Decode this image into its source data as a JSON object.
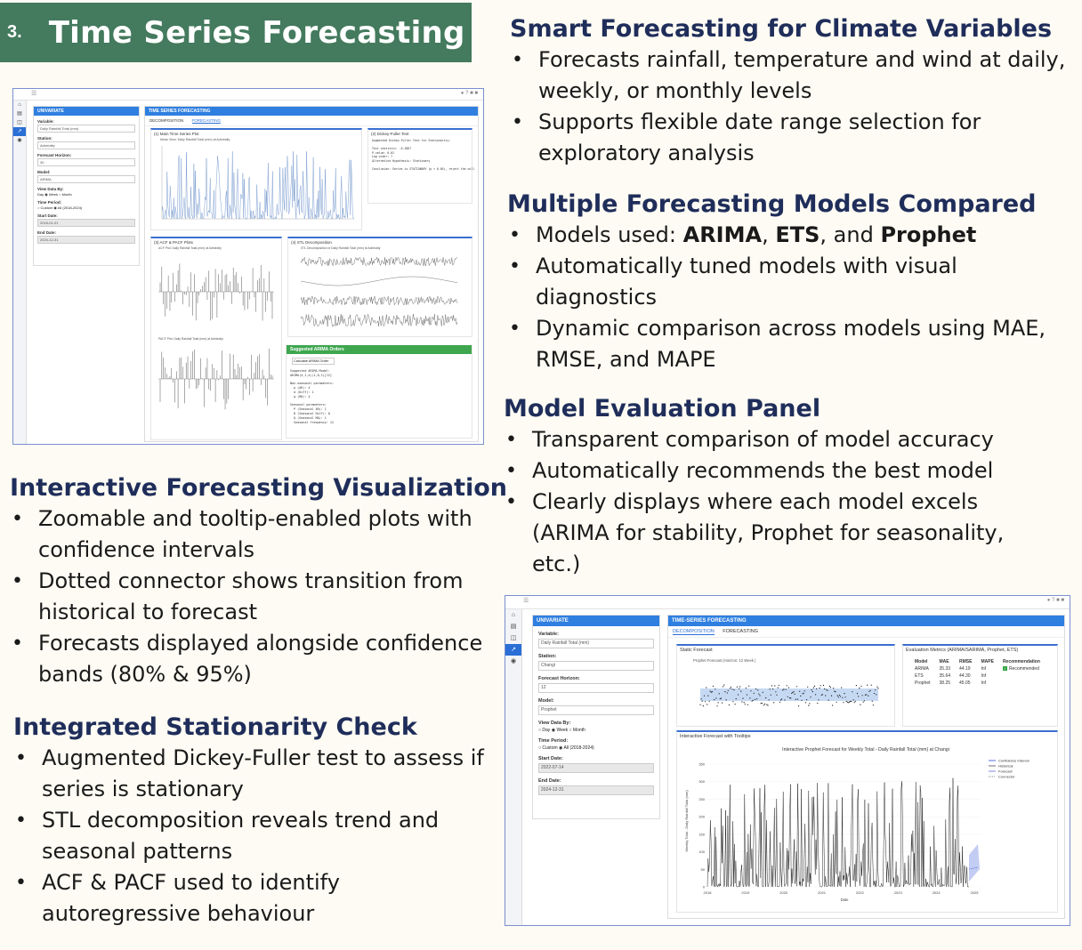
{
  "banner": {
    "number": "3.",
    "title": "Time Series Forecasting"
  },
  "sections": {
    "smart": {
      "heading": "Smart Forecasting for Climate Variables",
      "bullets": [
        "Forecasts rainfall, temperature and wind at daily, weekly, or monthly levels",
        "Supports flexible date range selection for exploratory analysis"
      ]
    },
    "models": {
      "heading": "Multiple Forecasting Models Compared",
      "b1_prefix": "Models used: ",
      "b1_arima": "ARIMA",
      "b1_sep": ", ",
      "b1_ets": "ETS",
      "b1_and": ", and ",
      "b1_prophet": "Prophet",
      "bullets": [
        "Automatically tuned models with visual diagnostics",
        "Dynamic comparison across models using MAE, RMSE, and MAPE"
      ]
    },
    "evaluation": {
      "heading": "Model Evaluation Panel",
      "bullets": [
        "Transparent comparison of model accuracy",
        "Automatically recommends the best model",
        "Clearly displays where each model excels (ARIMA for stability, Prophet for seasonality, etc.)"
      ]
    },
    "interactive": {
      "heading": "Interactive Forecasting Visualization",
      "bullets": [
        "Zoomable and tooltip-enabled plots with confidence intervals",
        "Dotted connector shows transition from historical to forecast",
        "Forecasts displayed alongside confidence bands (80% & 95%)"
      ]
    },
    "stationarity": {
      "heading": "Integrated Stationarity Check",
      "bullets": [
        "Augmented Dickey-Fuller test to assess if series is stationary",
        "STL decomposition reveals trend and seasonal patterns",
        "ACF & PACF used to identify autoregressive behaviour"
      ]
    }
  },
  "screenshot1": {
    "left_panel_title": "UNIVARIATE",
    "right_panel_title": "TIME SERIES FORECASTING",
    "tabs": [
      "DECOMPOSITION",
      "FORECASTING"
    ],
    "fields": [
      {
        "label": "Variable:",
        "value": "Daily Rainfall Total (mm)"
      },
      {
        "label": "Station:",
        "value": "Admiralty"
      },
      {
        "label": "Forecast Horizon:",
        "value": "30"
      },
      {
        "label": "Model:",
        "value": "ARIMA"
      }
    ],
    "view_label": "View Data By:",
    "view_options": "Day ◉ Week ○ Month",
    "period_label": "Time Period:",
    "period_options": "○ Custom ◉ All (2018-2024)",
    "start_label": "Start Date:",
    "start_value": "2018-01-01",
    "end_label": "End Date:",
    "end_value": "2024-12-31",
    "plot1_title": "(1) Main Time Series Plot",
    "plot1_sub": "Mean View: Daily Rainfall Total (mm) at Admiralty",
    "adf_title": "(2) Dickey-Fuller Test",
    "adf_text": "Augmented Dickey-Fuller Test for Stationarity:\n\nTest statistic: -6.2867\nP-value: 0.01\nLag order: 7\nAlternative Hypothesis: Stationary\n\nConclusion: Series is STATIONARY (p < 0.05), reject the null",
    "acf_title": "(3) ACF & PACF Plots",
    "acf_sub": "ACF Plot: Daily Rainfall Total (mm) at Admiralty",
    "pacf_sub": "PACF Plot: Daily Rainfall Total (mm) at Admiralty",
    "stl_title": "(4) STL Decomposition",
    "stl_sub": "STL Decomposition of Daily Rainfall Total (mm) at Admiralty",
    "arima_title": "Suggested ARIMA Orders",
    "arima_button": "Calculate ARIMA Order",
    "arima_text": "Suggested ARIMA Model:\nARIMA(4,1,4)(1,0,1)[12]\n\nNon-seasonal parameters:\n  p (AR): 4\n  d (Diff): 1\n  q (MA): 4\n\nSeasonal parameters:\n  P (Seasonal AR): 1\n  D (Seasonal Diff): 0\n  Q (Seasonal MA): 1\n  Seasonal frequency: 12"
  },
  "screenshot2": {
    "left_panel_title": "UNIVARIATE",
    "right_panel_title": "TIME-SERIES FORECASTING",
    "tabs": [
      "DECOMPOSITION",
      "FORECASTING"
    ],
    "fields": [
      {
        "label": "Variable:",
        "value": "Daily Rainfall Total (mm)"
      },
      {
        "label": "Station:",
        "value": "Changi"
      },
      {
        "label": "Forecast Horizon:",
        "value": "12"
      },
      {
        "label": "Model:",
        "value": "Prophet"
      }
    ],
    "view_label": "View Data By:",
    "view_options": "○ Day ◉ Week ○ Month",
    "period_label": "Time Period:",
    "period_options": "○ Custom ◉ All (2018-2024)",
    "start_label": "Start Date:",
    "start_value": "2022-07-14",
    "end_label": "End Date:",
    "end_value": "2024-12-31",
    "static_title": "Static Forecast",
    "static_sub": "Prophet Forecast (Horizon: 12 Week )",
    "metrics_title": "Evaluation Metrics (ARIMA/SARIMA, Prophet, ETS)",
    "metrics_headers": [
      "Model",
      "MAE",
      "RMSE",
      "MAPE",
      "Recommendation"
    ],
    "metrics_rows": [
      [
        "ARIMA",
        "35.33",
        "44.19",
        "Inf",
        "Recommended"
      ],
      [
        "ETS",
        "35.64",
        "44.30",
        "Inf",
        ""
      ],
      [
        "Prophet",
        "38.25",
        "45.05",
        "Inf",
        ""
      ]
    ],
    "interactive_title": "Interactive Forecast with Tooltips",
    "chart_title": "Interactive Prophet Forecast for Weekly Total -  Daily Rainfall Total (mm) at Changi",
    "chart_ylabel": "Weekly Total - Daily Rainfall Total (mm)",
    "chart_xlabel": "Date",
    "chart_xticks": [
      "2018",
      "2019",
      "2020",
      "2021",
      "2022",
      "2023",
      "2024",
      "2025"
    ],
    "chart_yticks": [
      "0",
      "50",
      "100",
      "150",
      "200",
      "250",
      "300",
      "350"
    ],
    "legend": [
      "Confidence Interval",
      "Historical",
      "Forecast",
      "Connector"
    ]
  }
}
